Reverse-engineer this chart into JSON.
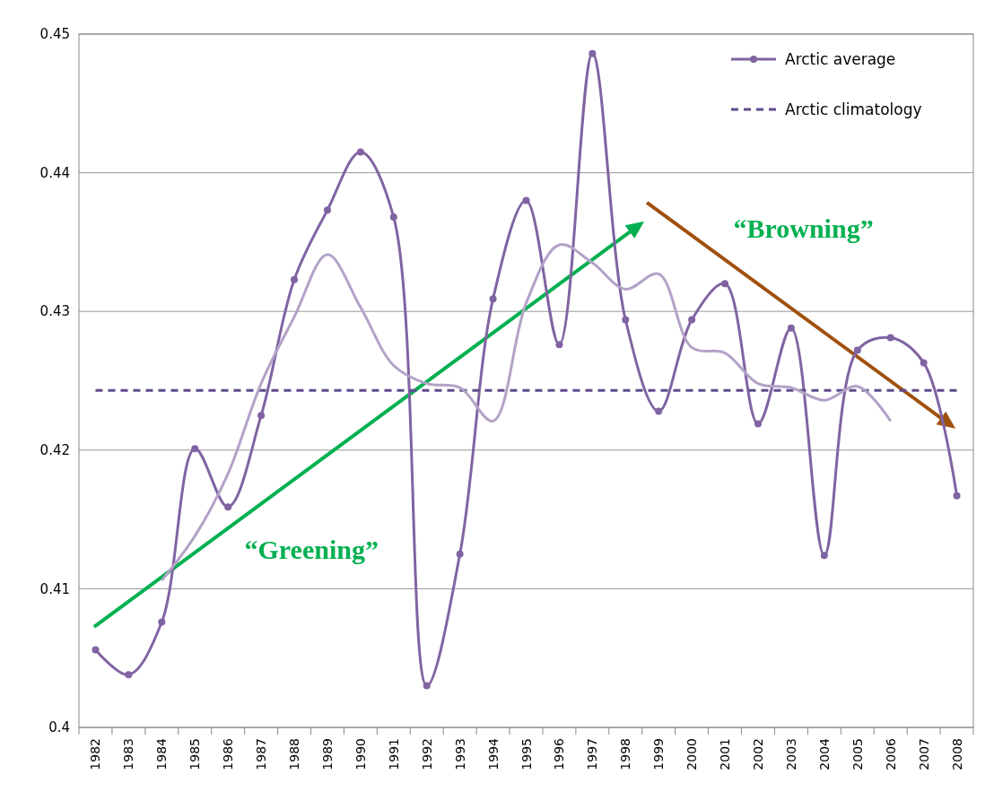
{
  "chart_data": {
    "type": "line",
    "categories": [
      "1982",
      "1983",
      "1984",
      "1985",
      "1986",
      "1987",
      "1988",
      "1989",
      "1990",
      "1991",
      "1992",
      "1993",
      "1994",
      "1995",
      "1996",
      "1997",
      "1998",
      "1999",
      "2000",
      "2001",
      "2002",
      "2003",
      "2004",
      "2005",
      "2006",
      "2007",
      "2008"
    ],
    "series": [
      {
        "name": "Arctic average",
        "color": "#8064a2",
        "marker": "circle",
        "line_style": "solid",
        "values": [
          0.4056,
          0.4038,
          0.4076,
          0.4201,
          0.4159,
          0.4225,
          0.4323,
          0.4373,
          0.4415,
          0.4368,
          0.403,
          0.4125,
          0.4309,
          0.438,
          0.4276,
          0.4486,
          0.4294,
          0.4228,
          0.4294,
          0.432,
          0.4219,
          0.4288,
          0.4124,
          0.4272,
          0.4281,
          0.4263,
          0.4167
        ]
      },
      {
        "name": "Arctic climatology",
        "color": "#5f4b8b",
        "marker": "none",
        "line_style": "dashed",
        "values": [
          0.4243,
          0.4243,
          0.4243,
          0.4243,
          0.4243,
          0.4243,
          0.4243,
          0.4243,
          0.4243,
          0.4243,
          0.4243,
          0.4243,
          0.4243,
          0.4243,
          0.4243,
          0.4243,
          0.4243,
          0.4243,
          0.4243,
          0.4243,
          0.4243,
          0.4243,
          0.4243,
          0.4243,
          0.4243,
          0.4243,
          0.4243
        ]
      },
      {
        "color": "#b3a2c7",
        "marker": "none",
        "line_style": "solid",
        "values": [
          null,
          null,
          0.4106,
          0.4138,
          0.4183,
          0.4248,
          0.4296,
          0.4341,
          0.4303,
          0.4261,
          0.4248,
          0.4245,
          0.4221,
          0.4306,
          0.4348,
          0.4335,
          0.4316,
          0.4327,
          0.4274,
          0.427,
          0.4248,
          0.4245,
          0.4236,
          0.4246,
          0.4221,
          null,
          null
        ]
      }
    ],
    "ylim": [
      0.4,
      0.45
    ],
    "yticks": [
      0.4,
      0.41,
      0.42,
      0.43,
      0.44,
      0.45
    ],
    "grid": "y",
    "legend": "top right",
    "annotations": [
      "“Greening”",
      "“Browning”"
    ]
  }
}
